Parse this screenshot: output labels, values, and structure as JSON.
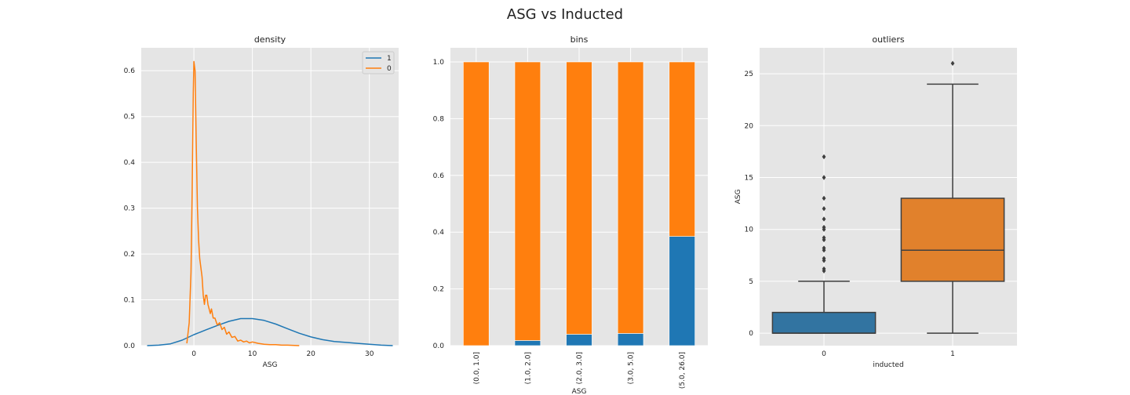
{
  "figure": {
    "title": "ASG vs Inducted"
  },
  "colors": {
    "blue": "#1f77b4",
    "orange": "#ff7f0e",
    "box_blue": "#3274a1",
    "box_orange": "#e1812c",
    "panel_bg": "#e5e5e5",
    "grid": "#ffffff"
  },
  "chart_data": [
    {
      "type": "line",
      "title": "density",
      "xlabel": "ASG",
      "ylabel": "",
      "xlim": [
        -9,
        35
      ],
      "ylim": [
        0,
        0.65
      ],
      "xticks": [
        0,
        10,
        20,
        30
      ],
      "yticks": [
        0.0,
        0.1,
        0.2,
        0.3,
        0.4,
        0.5,
        0.6
      ],
      "grid": true,
      "legend": "top-right",
      "series": [
        {
          "name": "1",
          "color": "#1f77b4",
          "x": [
            -8,
            -6,
            -4,
            -2,
            0,
            2,
            4,
            6,
            8,
            10,
            12,
            14,
            16,
            18,
            20,
            22,
            24,
            26,
            28,
            30,
            32,
            34
          ],
          "y": [
            0.0,
            0.001,
            0.004,
            0.012,
            0.024,
            0.034,
            0.044,
            0.053,
            0.059,
            0.059,
            0.055,
            0.047,
            0.037,
            0.027,
            0.019,
            0.013,
            0.009,
            0.007,
            0.005,
            0.003,
            0.001,
            0.0
          ]
        },
        {
          "name": "0",
          "color": "#ff7f0e",
          "x": [
            -1.2,
            -0.8,
            -0.5,
            -0.3,
            -0.1,
            0.0,
            0.2,
            0.4,
            0.6,
            0.8,
            1.0,
            1.2,
            1.4,
            1.6,
            1.8,
            2.0,
            2.2,
            2.4,
            2.6,
            2.8,
            3.0,
            3.3,
            3.6,
            4.0,
            4.4,
            4.8,
            5.2,
            5.6,
            6.0,
            6.5,
            7.0,
            7.5,
            8.0,
            8.5,
            9.0,
            9.5,
            10.0,
            11.0,
            12.0,
            13.0,
            14.0,
            15.0,
            16.0,
            18.0
          ],
          "y": [
            0.005,
            0.05,
            0.16,
            0.34,
            0.55,
            0.62,
            0.6,
            0.44,
            0.3,
            0.23,
            0.19,
            0.17,
            0.15,
            0.11,
            0.09,
            0.11,
            0.11,
            0.09,
            0.08,
            0.07,
            0.08,
            0.06,
            0.06,
            0.045,
            0.05,
            0.035,
            0.04,
            0.025,
            0.03,
            0.018,
            0.02,
            0.01,
            0.012,
            0.008,
            0.01,
            0.006,
            0.008,
            0.005,
            0.003,
            0.002,
            0.002,
            0.001,
            0.001,
            0.0
          ]
        }
      ]
    },
    {
      "type": "bar",
      "title": "bins",
      "xlabel": "ASG",
      "ylabel": "",
      "ylim": [
        0,
        1.0
      ],
      "yticks": [
        0.0,
        0.2,
        0.4,
        0.6,
        0.8,
        1.0
      ],
      "stacked": true,
      "grid": true,
      "categories": [
        "(0.0, 1.0]",
        "(1.0, 2.0]",
        "(2.0, 3.0]",
        "(3.0, 5.0]",
        "(5.0, 26.0]"
      ],
      "series": [
        {
          "color": "#1f77b4",
          "values": [
            0.0,
            0.018,
            0.04,
            0.043,
            0.385
          ]
        },
        {
          "color": "#ff7f0e",
          "values": [
            1.0,
            0.982,
            0.96,
            0.957,
            0.615
          ]
        }
      ]
    },
    {
      "type": "box",
      "title": "outliers",
      "xlabel": "inducted",
      "ylabel": "ASG",
      "ylim": [
        -1.2,
        27.5
      ],
      "yticks": [
        0,
        5,
        10,
        15,
        20,
        25
      ],
      "grid": true,
      "categories": [
        "0",
        "1"
      ],
      "boxes": [
        {
          "category": "0",
          "color": "#3274a1",
          "whisker_low": 0,
          "q1": 0,
          "median": 0,
          "q3": 2,
          "whisker_high": 5,
          "outliers": [
            6,
            6.2,
            7,
            7.2,
            8,
            8.2,
            9,
            9.2,
            10,
            10.2,
            11,
            12,
            13,
            15,
            17
          ]
        },
        {
          "category": "1",
          "color": "#e1812c",
          "whisker_low": 0,
          "q1": 5,
          "median": 8,
          "q3": 13,
          "whisker_high": 24,
          "outliers": [
            26
          ]
        }
      ]
    }
  ]
}
